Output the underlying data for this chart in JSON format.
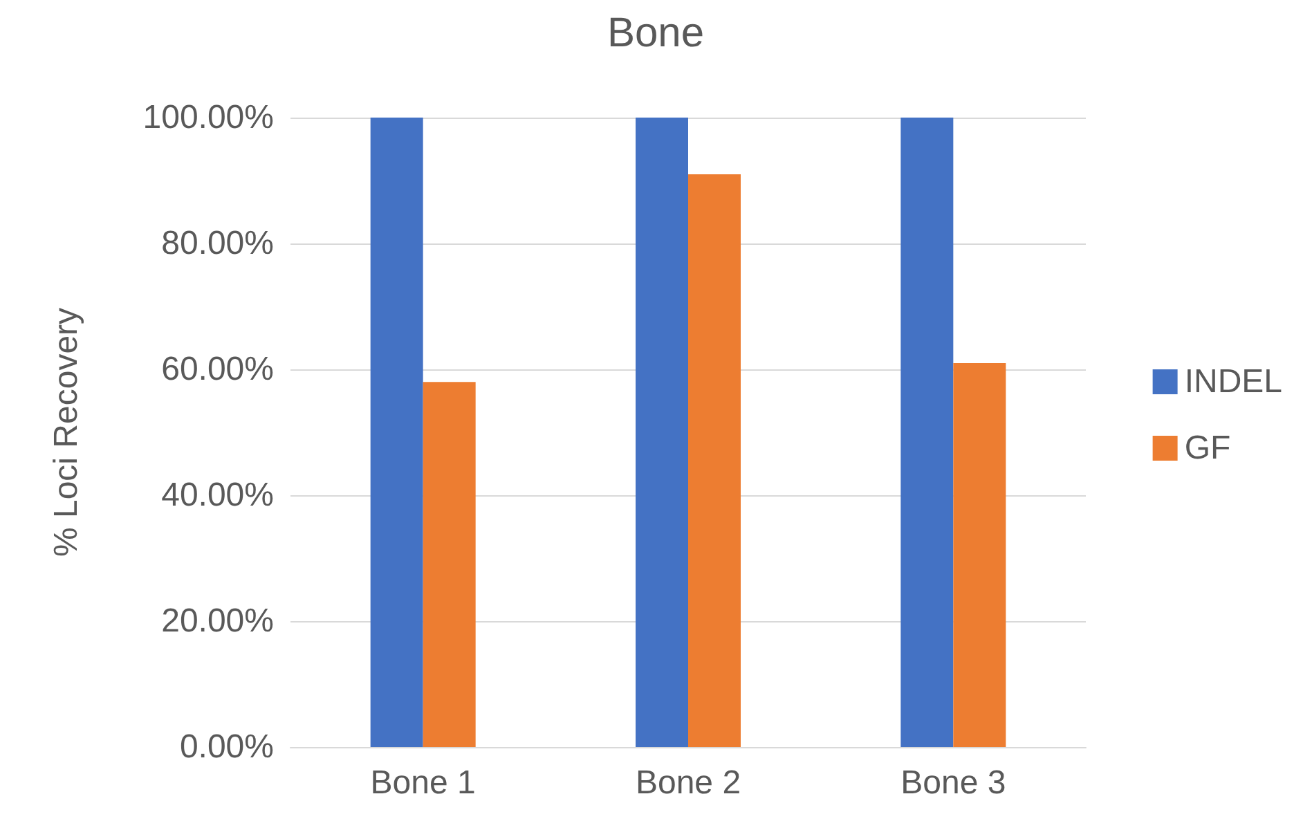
{
  "chart_data": {
    "type": "bar",
    "title": "Bone",
    "ylabel": "% Loci Recovery",
    "categories": [
      "Bone 1",
      "Bone 2",
      "Bone 3"
    ],
    "series": [
      {
        "name": "INDEL",
        "color": "#4472c4",
        "values": [
          100,
          100,
          100
        ]
      },
      {
        "name": "GF",
        "color": "#ed7d31",
        "values": [
          58,
          91,
          61
        ]
      }
    ],
    "ylim": [
      0,
      100
    ],
    "yticks": [
      {
        "value": 0,
        "label": "0.00%"
      },
      {
        "value": 20,
        "label": "20.00%"
      },
      {
        "value": 40,
        "label": "40.00%"
      },
      {
        "value": 60,
        "label": "60.00%"
      },
      {
        "value": 80,
        "label": "80.00%"
      },
      {
        "value": 100,
        "label": "100.00%"
      }
    ],
    "grid": "y",
    "legend": "right"
  }
}
